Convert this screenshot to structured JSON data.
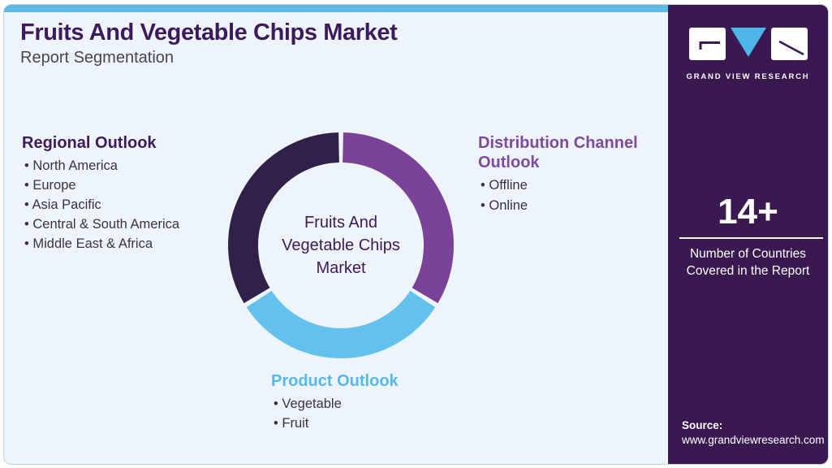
{
  "header": {
    "title": "Fruits And Vegetable Chips Market",
    "subtitle": "Report Segmentation"
  },
  "sections": {
    "regional": {
      "heading": "Regional Outlook",
      "items": [
        "North America",
        "Europe",
        "Asia Pacific",
        "Central & South America",
        "Middle East & Africa"
      ]
    },
    "distribution": {
      "heading": "Distribution Channel Outlook",
      "items": [
        "Offline",
        "Online"
      ]
    },
    "product": {
      "heading": "Product Outlook",
      "items": [
        "Vegetable",
        "Fruit"
      ]
    }
  },
  "chart_data": {
    "type": "pie",
    "subtype": "donut",
    "center_label": "Fruits And Vegetable Chips Market",
    "segments": [
      {
        "label": "Distribution Channel Outlook",
        "value": 34,
        "color": "#7b4397",
        "start_deg": 0,
        "end_deg": 122
      },
      {
        "label": "Product Outlook",
        "value": 32,
        "color": "#63c1ec",
        "start_deg": 122,
        "end_deg": 238
      },
      {
        "label": "Regional Outlook",
        "value": 34,
        "color": "#2f2147",
        "start_deg": 238,
        "end_deg": 360
      }
    ],
    "gap_deg": 2.4,
    "outer_radius": 139,
    "inner_radius": 102,
    "legend_position": "around-chart",
    "grid": false
  },
  "sidebar": {
    "logo_text": "GRAND VIEW RESEARCH",
    "stat_value": "14+",
    "stat_label": "Number of Countries Covered in the Report",
    "source_label": "Source:",
    "source_url": "www.grandviewresearch.com"
  },
  "colors": {
    "accent_strip": "#5fb9e8",
    "card_bg": "#eef5fa",
    "sidebar_bg": "#3a1951",
    "title_text": "#3d1a5b",
    "body_text": "#3a3142",
    "heading_purple": "#7d4a9e",
    "heading_blue": "#56b8e9",
    "segment_purple": "#7b4397",
    "segment_blue": "#63c1ec",
    "segment_dark": "#2f2147",
    "logo_triangle": "#4db5e8"
  }
}
